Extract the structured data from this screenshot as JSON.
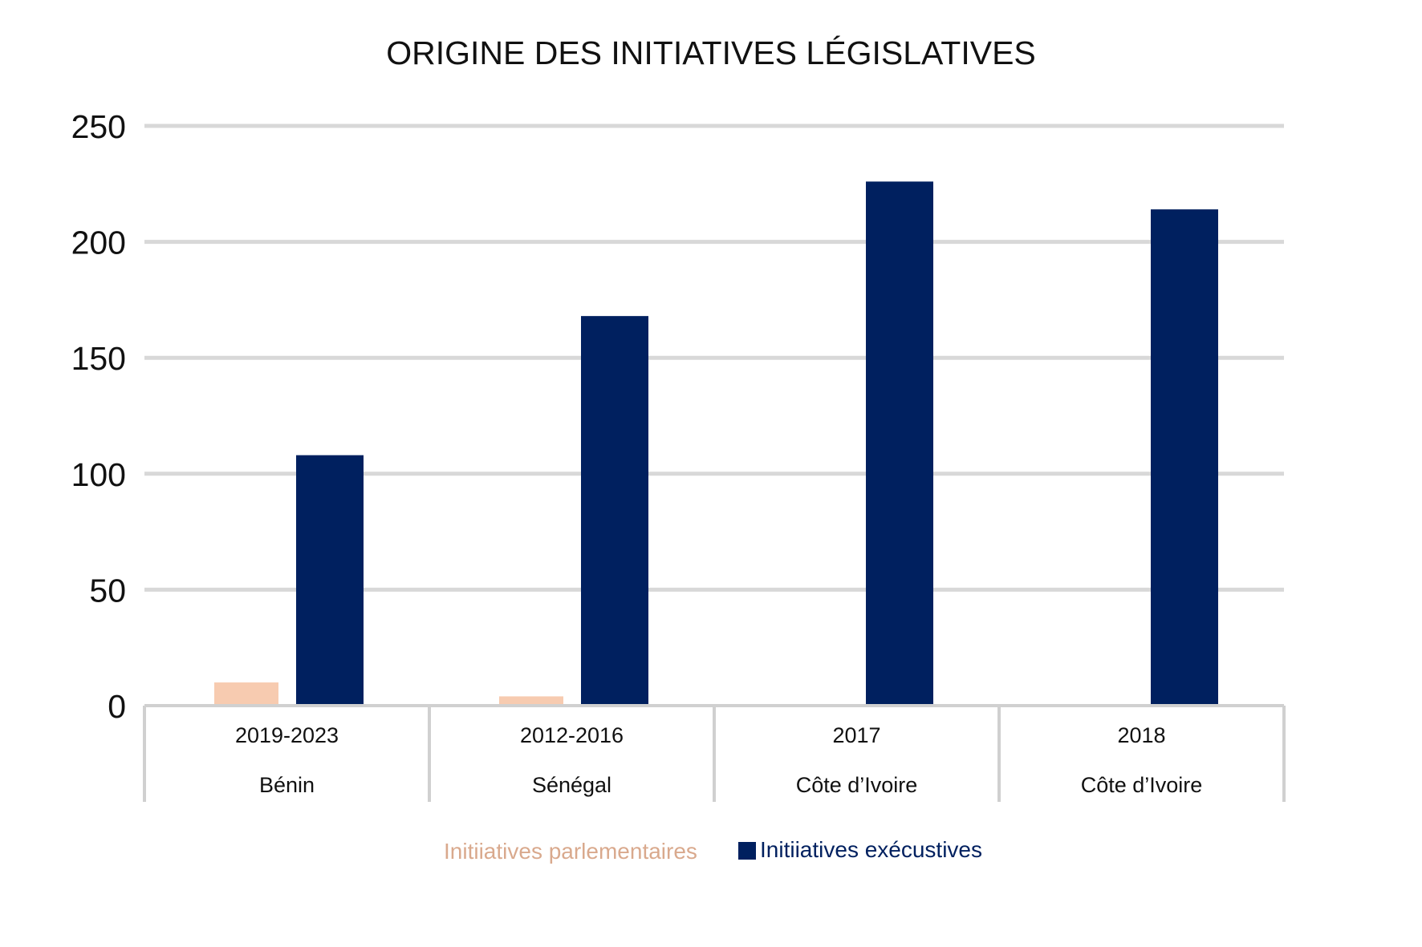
{
  "colors": {
    "parlementaires": "#f7cbb0",
    "parlementaires_label": "#d9a98d",
    "executives": "#00205f",
    "grid": "#d8d8d8",
    "axis": "#d0d0d0"
  },
  "chart_data": {
    "type": "bar",
    "title": "ORIGINE DES INITIATIVES LÉGISLATIVES",
    "xlabel": "",
    "ylabel": "",
    "ylim": [
      0,
      250
    ],
    "yticks": [
      0,
      50,
      100,
      150,
      200,
      250
    ],
    "grid": true,
    "legend_position": "bottom",
    "categories": [
      {
        "year": "2019-2023",
        "country": "Bénin"
      },
      {
        "year": "2012-2016",
        "country": "Sénégal"
      },
      {
        "year": "2017",
        "country": "Côte d’Ivoire"
      },
      {
        "year": "2018",
        "country": "Côte d’Ivoire"
      }
    ],
    "series": [
      {
        "name": "Initiiatives parlementaires",
        "values": [
          10,
          4,
          0,
          0
        ]
      },
      {
        "name": "Initiiatives exécustives",
        "values": [
          108,
          168,
          226,
          214
        ]
      }
    ]
  }
}
